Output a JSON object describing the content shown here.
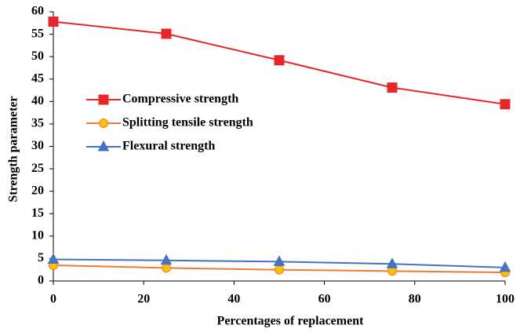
{
  "chart_data": {
    "type": "line",
    "x_label": "Percentages of replacement",
    "y_label": "Strength parameter",
    "x": [
      0,
      25,
      50,
      75,
      100
    ],
    "series": [
      {
        "name": "Compressive strength",
        "color": "#e8262a",
        "marker": "square",
        "marker_fill": "#e8262a",
        "values": [
          57.8,
          55.1,
          49.2,
          43.1,
          39.4
        ]
      },
      {
        "name": "Splitting tensile strength",
        "color": "#ed7d31",
        "marker": "circle",
        "marker_fill": "#ffc000",
        "values": [
          3.5,
          2.9,
          2.5,
          2.2,
          1.9
        ]
      },
      {
        "name": "Flexural strength",
        "color": "#4472c4",
        "marker": "triangle",
        "marker_fill": "#4472c4",
        "values": [
          4.8,
          4.6,
          4.3,
          3.8,
          3.0
        ]
      }
    ],
    "xlim": [
      0,
      100
    ],
    "xticks": [
      0,
      20,
      40,
      60,
      80,
      100
    ],
    "ylim": [
      0,
      60
    ],
    "yticks": [
      0,
      5,
      10,
      15,
      20,
      25,
      30,
      35,
      40,
      45,
      50,
      55,
      60
    ],
    "grid": false,
    "legend": "left"
  }
}
